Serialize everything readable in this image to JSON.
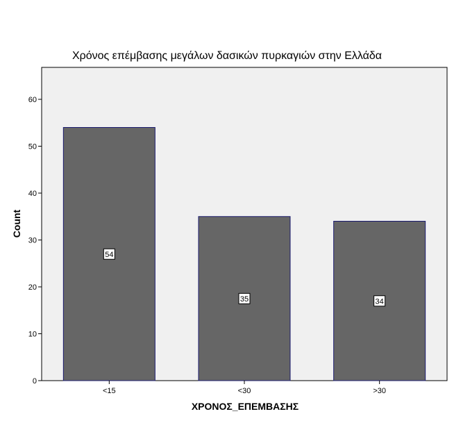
{
  "chart_data": {
    "type": "bar",
    "title": "Χρόνος επέμβασης μεγάλων δασικών πυρκαγιών στην Ελλάδα",
    "xlabel": "ΧΡΟΝΟΣ_ΕΠΕΜΒΑΣΗΣ",
    "ylabel": "Count",
    "categories": [
      "<15",
      "<30",
      ">30"
    ],
    "values": [
      54,
      35,
      34
    ],
    "data_labels": [
      "54",
      "35",
      "34"
    ],
    "ylim": [
      0,
      60
    ],
    "yticks": [
      0,
      10,
      20,
      30,
      40,
      50,
      60
    ],
    "grid": false,
    "legend": "none",
    "colors": {
      "bar_fill": "#666666",
      "bar_stroke": "#1a1a6e",
      "plot_background": "#f0f0f0",
      "plot_border": "#000000"
    }
  }
}
